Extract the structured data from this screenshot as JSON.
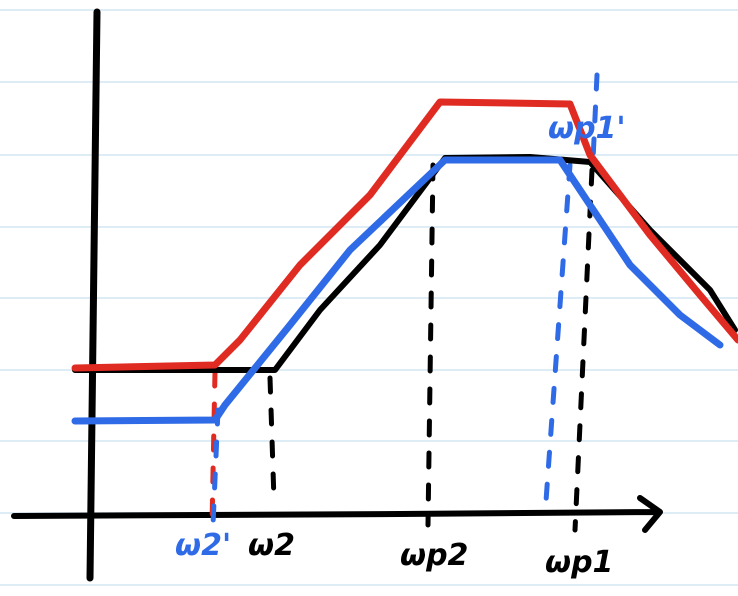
{
  "labels": {
    "w2_prime": "ω2'",
    "w2": "ω2",
    "wp2": "ωp2",
    "wp1": "ωp1",
    "wp1_prime": "ωp1'"
  }
}
